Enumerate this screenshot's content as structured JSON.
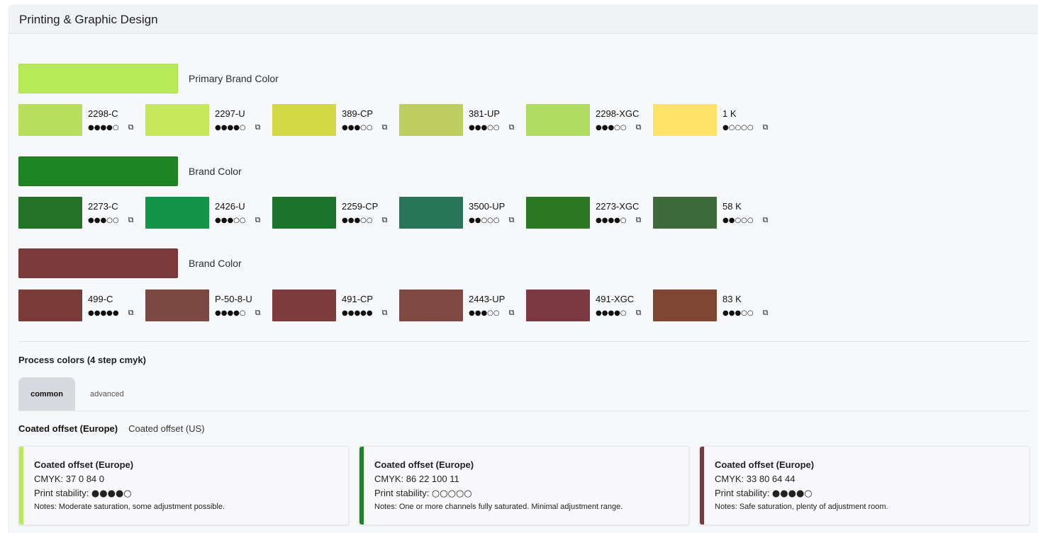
{
  "panel": {
    "title": "Printing & Graphic Design"
  },
  "groups": [
    {
      "label": "Primary Brand Color",
      "color": "#b6eb57",
      "variants": [
        {
          "code": "2298-C",
          "stars": "●●●●○",
          "color": "#bade5e"
        },
        {
          "code": "2297-U",
          "stars": "●●●●○",
          "color": "#c5e95a"
        },
        {
          "code": "389-CP",
          "stars": "●●●○○",
          "color": "#d3d942"
        },
        {
          "code": "381-UP",
          "stars": "●●●○○",
          "color": "#bdcd5e"
        },
        {
          "code": "2298-XGC",
          "stars": "●●●○○",
          "color": "#b0dd5f"
        },
        {
          "code": "1 K",
          "stars": "●○○○○",
          "color": "#fee265"
        }
      ]
    },
    {
      "label": "Brand Color",
      "color": "#1e8323",
      "variants": [
        {
          "code": "2273-C",
          "stars": "●●●○○",
          "color": "#237326"
        },
        {
          "code": "2426-U",
          "stars": "●●●○○",
          "color": "#159348"
        },
        {
          "code": "2259-CP",
          "stars": "●●●○○",
          "color": "#1a742b"
        },
        {
          "code": "3500-UP",
          "stars": "●●○○○",
          "color": "#297559"
        },
        {
          "code": "2273-XGC",
          "stars": "●●●●○",
          "color": "#2b7925"
        },
        {
          "code": "58 K",
          "stars": "●●○○○",
          "color": "#3d6b3b"
        }
      ]
    },
    {
      "label": "Brand Color",
      "color": "#7b393a",
      "variants": [
        {
          "code": "499-C",
          "stars": "●●●●●",
          "color": "#7a3b39"
        },
        {
          "code": "P-50-8-U",
          "stars": "●●●●○",
          "color": "#7d4742"
        },
        {
          "code": "491-CP",
          "stars": "●●●●●",
          "color": "#803b3c"
        },
        {
          "code": "2443-UP",
          "stars": "●●●○○",
          "color": "#804a42"
        },
        {
          "code": "491-XGC",
          "stars": "●●●●○",
          "color": "#7d3842"
        },
        {
          "code": "83 K",
          "stars": "●●●○○",
          "color": "#7f4631"
        }
      ]
    }
  ],
  "copy_icon": "⧉",
  "icons": {
    "copy": "copy-icon"
  },
  "process": {
    "title": "Process colors (4 step cmyk)",
    "tabs": [
      {
        "label": "common"
      },
      {
        "label": "advanced"
      }
    ],
    "subtabs": [
      {
        "label": "Coated offset (Europe)"
      },
      {
        "label": "Coated offset (US)"
      }
    ],
    "cards": [
      {
        "title": "Coated offset (Europe)",
        "cmyk": "CMYK: 37 0 84 0",
        "stability_label": "Print stability: ",
        "stability": "●●●●○",
        "notes": "Notes: Moderate saturation, some adjustment possible.",
        "color": "#b6eb57"
      },
      {
        "title": "Coated offset (Europe)",
        "cmyk": "CMYK: 86 22 100 11",
        "stability_label": "Print stability: ",
        "stability": "○○○○○",
        "notes": "Notes: One or more channels fully saturated. Minimal adjustment range.",
        "color": "#1e8323"
      },
      {
        "title": "Coated offset (Europe)",
        "cmyk": "CMYK: 33 80 64 44",
        "stability_label": "Print stability: ",
        "stability": "●●●●○",
        "notes": "Notes: Safe saturation, plenty of adjustment room.",
        "color": "#7b393a"
      }
    ]
  }
}
